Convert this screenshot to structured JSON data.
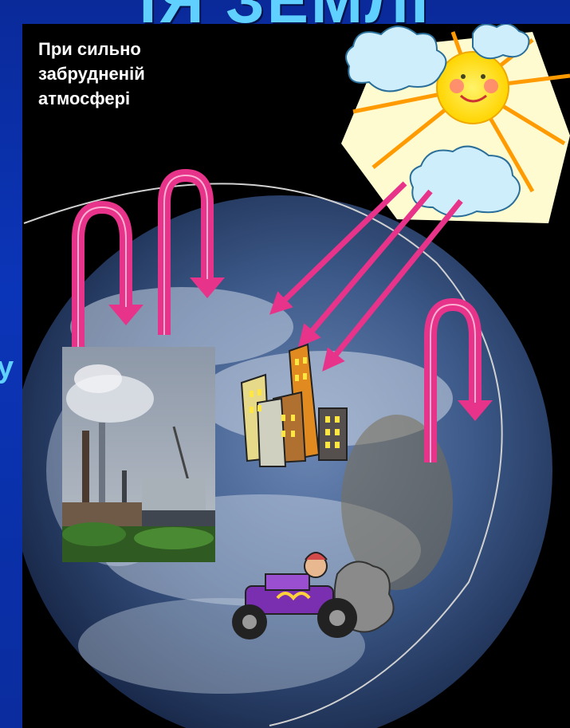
{
  "slide": {
    "title_partial": "ІЯ ЗЕМЛІ",
    "side_letter": "у",
    "caption_lines": [
      "При сильно",
      "забрудненій",
      "атмосфері"
    ]
  },
  "colors": {
    "background": "#0b35b8",
    "panel": "#000000",
    "arrow": "#e8338a",
    "title": "#5fd0ff",
    "caption": "#ffffff"
  },
  "icons": [
    "sun-icon",
    "cloud-icon",
    "factory-image",
    "city-buildings-icon",
    "car-icon",
    "earth-image"
  ]
}
